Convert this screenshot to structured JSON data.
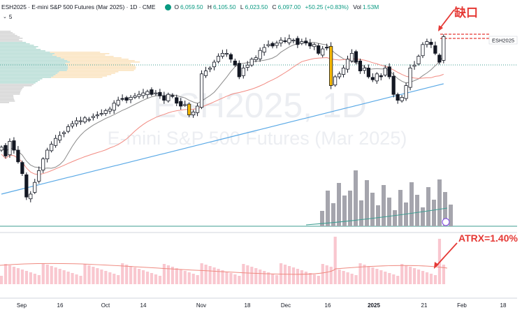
{
  "header": {
    "symbol_line": "ESH2025 · E-mini S&P 500 Futures (Mar 2025) · 1D · CME",
    "ohlc": [
      {
        "label": "O",
        "value": "6,059.50"
      },
      {
        "label": "H",
        "value": "6,105.50"
      },
      {
        "label": "L",
        "value": "6,023.50"
      },
      {
        "label": "C",
        "value": "6,097.00"
      },
      {
        "label": "",
        "value": "+50.25 (+0.83%)"
      }
    ],
    "vol_label": "Vol",
    "vol_value": "1.53M",
    "indicator_count": "5"
  },
  "watermark": {
    "symbol": "ESH2025, 1D",
    "name": "E-mini S&P 500 Futures (Mar 2025)"
  },
  "annotations": {
    "gap_text": "缺口",
    "atr_text": "ATRX=1.40%",
    "price_tag": "ESH2025"
  },
  "colors": {
    "up": "#ffffff",
    "up_border": "#131722",
    "down": "#131722",
    "highlight": "#f5b800",
    "ma_fast": "#8a8a8a",
    "ma_mid": "#f28b82",
    "ma_slow": "#5aa9e6",
    "volume": "#a5a5ad",
    "volume_ma": "#3e9e92",
    "atr_bar": "#f9c7cf",
    "atr_line": "#ef8a80",
    "annotation": "#e53935",
    "profile_green": "#b7ddd5",
    "profile_orange": "#fbe3bf",
    "profile_grey": "#d4d4d4"
  },
  "chart_data": {
    "type": "candlestick",
    "title": "ESH2025 · E-mini S&P 500 Futures (Mar 2025) · 1D · CME",
    "x_ticks": [
      "Sep",
      "16",
      "Oct",
      "14",
      "Nov",
      "18",
      "Dec",
      "16",
      "2025",
      "21",
      "Feb",
      "18"
    ],
    "y_range_approx": [
      5600,
      6180
    ],
    "candles_close": [
      5720,
      5690,
      5740,
      5710,
      5670,
      5630,
      5550,
      5560,
      5600,
      5640,
      5680,
      5710,
      5730,
      5750,
      5760,
      5770,
      5790,
      5800,
      5810,
      5810,
      5820,
      5815,
      5825,
      5830,
      5835,
      5845,
      5850,
      5870,
      5880,
      5885,
      5880,
      5890,
      5895,
      5900,
      5905,
      5910,
      5900,
      5905,
      5895,
      5880,
      5900,
      5895,
      5870,
      5860,
      5865,
      5830,
      5840,
      5860,
      5970,
      5980,
      5990,
      6010,
      6030,
      6040,
      6040,
      6020,
      6000,
      5960,
      5990,
      6000,
      6020,
      6025,
      6050,
      6060,
      6070,
      6065,
      6075,
      6085,
      6080,
      6090,
      6085,
      6070,
      6080,
      6075,
      6065,
      6070,
      6040,
      6055,
      6060,
      5930,
      5960,
      5970,
      5990,
      6020,
      6040,
      6010,
      5980,
      5990,
      5960,
      5950,
      5970,
      5960,
      5990,
      5960,
      5900,
      5880,
      5890,
      5930,
      5990,
      6000,
      6030,
      6070,
      6080,
      6070,
      6040,
      6010,
      6097
    ],
    "volume_bars_visible": 24,
    "atr_label": "ATRX=1.40%"
  }
}
